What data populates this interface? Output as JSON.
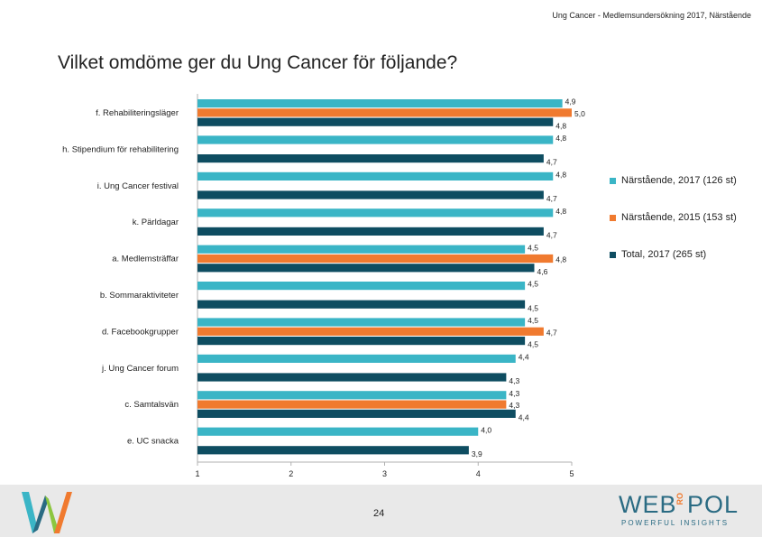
{
  "header_note": "Ung Cancer - Medlemsundersökning 2017, Närstående",
  "title": "Vilket omdöme ger du Ung Cancer för följande?",
  "page_number": "24",
  "footer": {
    "brand_left": "W",
    "brand_right_a": "WEB",
    "brand_right_ro": "RO",
    "brand_right_b": "POL",
    "brand_tagline": "POWERFUL INSIGHTS"
  },
  "colors": {
    "series_1": "#3ab5c6",
    "series_2": "#f07a2f",
    "series_3": "#0e4d61",
    "axis": "#b0b0b0",
    "footer_bg": "#e9e9e9"
  },
  "chart_data": {
    "type": "bar",
    "orientation": "horizontal",
    "xlim": [
      1,
      5
    ],
    "xticks": [
      "1",
      "2",
      "3",
      "4",
      "5"
    ],
    "grid": false,
    "legend_position": "right",
    "categories": [
      "f. Rehabiliteringsläger",
      "h. Stipendium för rehabilitering",
      "i. Ung Cancer festival",
      "k. Pärldagar",
      "a. Medlemsträffar",
      "b. Sommaraktiviteter",
      "d. Facebookgrupper",
      "j. Ung Cancer forum",
      "c. Samtalsvän",
      "e. UC snacka"
    ],
    "series": [
      {
        "name": "Närstående, 2017 (126 st)",
        "values": [
          4.9,
          4.8,
          4.8,
          4.8,
          4.5,
          4.5,
          4.5,
          4.4,
          4.3,
          4.0
        ],
        "labels": [
          "4,9",
          "4,8",
          "4,8",
          "4,8",
          "4,5",
          "4,5",
          "4,5",
          "4,4",
          "4,3",
          "4,0"
        ]
      },
      {
        "name": "Närstående, 2015 (153 st)",
        "values": [
          5.0,
          null,
          null,
          null,
          4.8,
          null,
          4.7,
          null,
          4.3,
          null
        ],
        "labels": [
          "5,0",
          null,
          null,
          null,
          "4,8",
          null,
          "4,7",
          null,
          "4,3",
          null
        ]
      },
      {
        "name": "Total, 2017 (265 st)",
        "values": [
          4.8,
          4.7,
          4.7,
          4.7,
          4.6,
          4.5,
          4.5,
          4.3,
          4.4,
          3.9
        ],
        "labels": [
          "4,8",
          "4,7",
          "4,7",
          "4,7",
          "4,6",
          "4,5",
          "4,5",
          "4,3",
          "4,4",
          "3,9"
        ]
      }
    ]
  }
}
